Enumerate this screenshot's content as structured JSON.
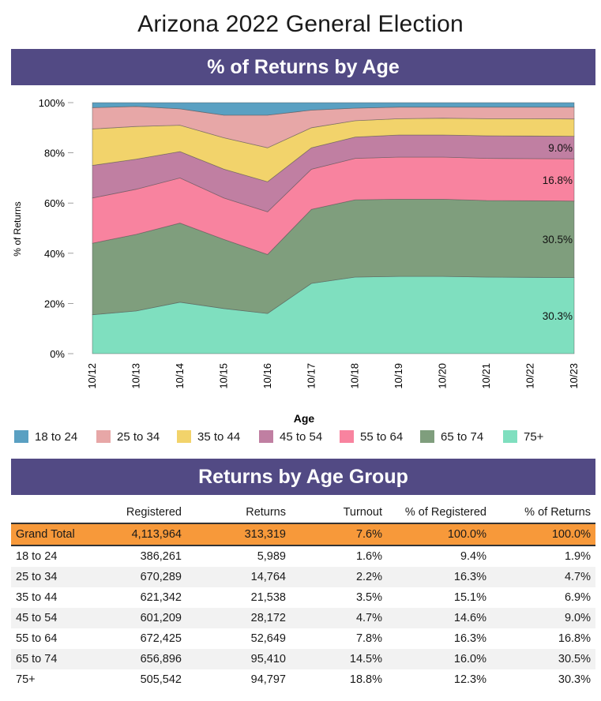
{
  "page": {
    "title": "Arizona 2022 General Election"
  },
  "chart_section": {
    "title": "% of Returns by Age"
  },
  "table_section": {
    "title": "Returns by Age Group"
  },
  "chart_data": {
    "type": "area",
    "stacked": true,
    "normalized": true,
    "title": "% of Returns by Age",
    "xlabel": "Age",
    "ylabel": "% of Returns",
    "ylim": [
      0,
      100
    ],
    "yticks": [
      "0%",
      "20%",
      "40%",
      "60%",
      "80%",
      "100%"
    ],
    "categories": [
      "10/12",
      "10/13",
      "10/14",
      "10/15",
      "10/16",
      "10/17",
      "10/18",
      "10/19",
      "10/20",
      "10/21",
      "10/22",
      "10/23"
    ],
    "series": [
      {
        "name": "75+",
        "color": "#7fdfbf",
        "values": [
          15.5,
          17.0,
          20.5,
          18.0,
          16.0,
          28.0,
          30.5,
          30.8,
          30.8,
          30.5,
          30.4,
          30.3
        ]
      },
      {
        "name": "65 to 74",
        "color": "#7f9e7d",
        "values": [
          28.5,
          30.5,
          31.5,
          27.5,
          23.5,
          29.5,
          30.8,
          30.7,
          30.7,
          30.5,
          30.5,
          30.5
        ]
      },
      {
        "name": "55 to 64",
        "color": "#f8839f",
        "values": [
          18.0,
          18.0,
          18.0,
          16.5,
          17.0,
          16.0,
          16.5,
          16.8,
          16.8,
          16.8,
          16.8,
          16.8
        ]
      },
      {
        "name": "45 to 54",
        "color": "#c07fa2",
        "values": [
          13.0,
          12.0,
          10.5,
          11.5,
          12.0,
          8.5,
          8.5,
          8.8,
          8.8,
          9.0,
          9.0,
          9.0
        ]
      },
      {
        "name": "35 to 44",
        "color": "#f2d36b",
        "values": [
          14.5,
          13.0,
          10.5,
          12.5,
          13.5,
          8.0,
          6.5,
          6.5,
          6.7,
          6.8,
          6.9,
          6.9
        ]
      },
      {
        "name": "25 to 34",
        "color": "#e7a7a7",
        "values": [
          8.5,
          8.0,
          6.5,
          9.0,
          13.0,
          7.0,
          5.0,
          4.6,
          4.4,
          4.6,
          4.6,
          4.7
        ]
      },
      {
        "name": "18 to 24",
        "color": "#5aa0c2",
        "values": [
          2.0,
          1.5,
          2.5,
          5.0,
          5.0,
          3.0,
          2.2,
          1.8,
          1.8,
          1.8,
          1.8,
          1.8
        ]
      }
    ],
    "annotations": [
      {
        "series": "45 to 54",
        "text": "9.0%"
      },
      {
        "series": "55 to 64",
        "text": "16.8%"
      },
      {
        "series": "65 to 74",
        "text": "30.5%"
      },
      {
        "series": "75+",
        "text": "30.3%"
      }
    ],
    "legend_order": [
      "18 to 24",
      "25 to 34",
      "35 to 44",
      "45 to 54",
      "55 to 64",
      "65 to 74",
      "75+"
    ],
    "legend_position": "bottom",
    "grid": false
  },
  "table": {
    "columns": [
      "",
      "Registered",
      "Returns",
      "Turnout",
      "% of Registered",
      "% of Returns"
    ],
    "grand_total": [
      "Grand Total",
      "4,113,964",
      "313,319",
      "7.6%",
      "100.0%",
      "100.0%"
    ],
    "rows": [
      [
        "18 to 24",
        "386,261",
        "5,989",
        "1.6%",
        "9.4%",
        "1.9%"
      ],
      [
        "25 to 34",
        "670,289",
        "14,764",
        "2.2%",
        "16.3%",
        "4.7%"
      ],
      [
        "35 to 44",
        "621,342",
        "21,538",
        "3.5%",
        "15.1%",
        "6.9%"
      ],
      [
        "45 to 54",
        "601,209",
        "28,172",
        "4.7%",
        "14.6%",
        "9.0%"
      ],
      [
        "55 to 64",
        "672,425",
        "52,649",
        "7.8%",
        "16.3%",
        "16.8%"
      ],
      [
        "65 to 74",
        "656,896",
        "95,410",
        "14.5%",
        "16.0%",
        "30.5%"
      ],
      [
        "75+",
        "505,542",
        "94,797",
        "18.8%",
        "12.3%",
        "30.3%"
      ]
    ]
  }
}
